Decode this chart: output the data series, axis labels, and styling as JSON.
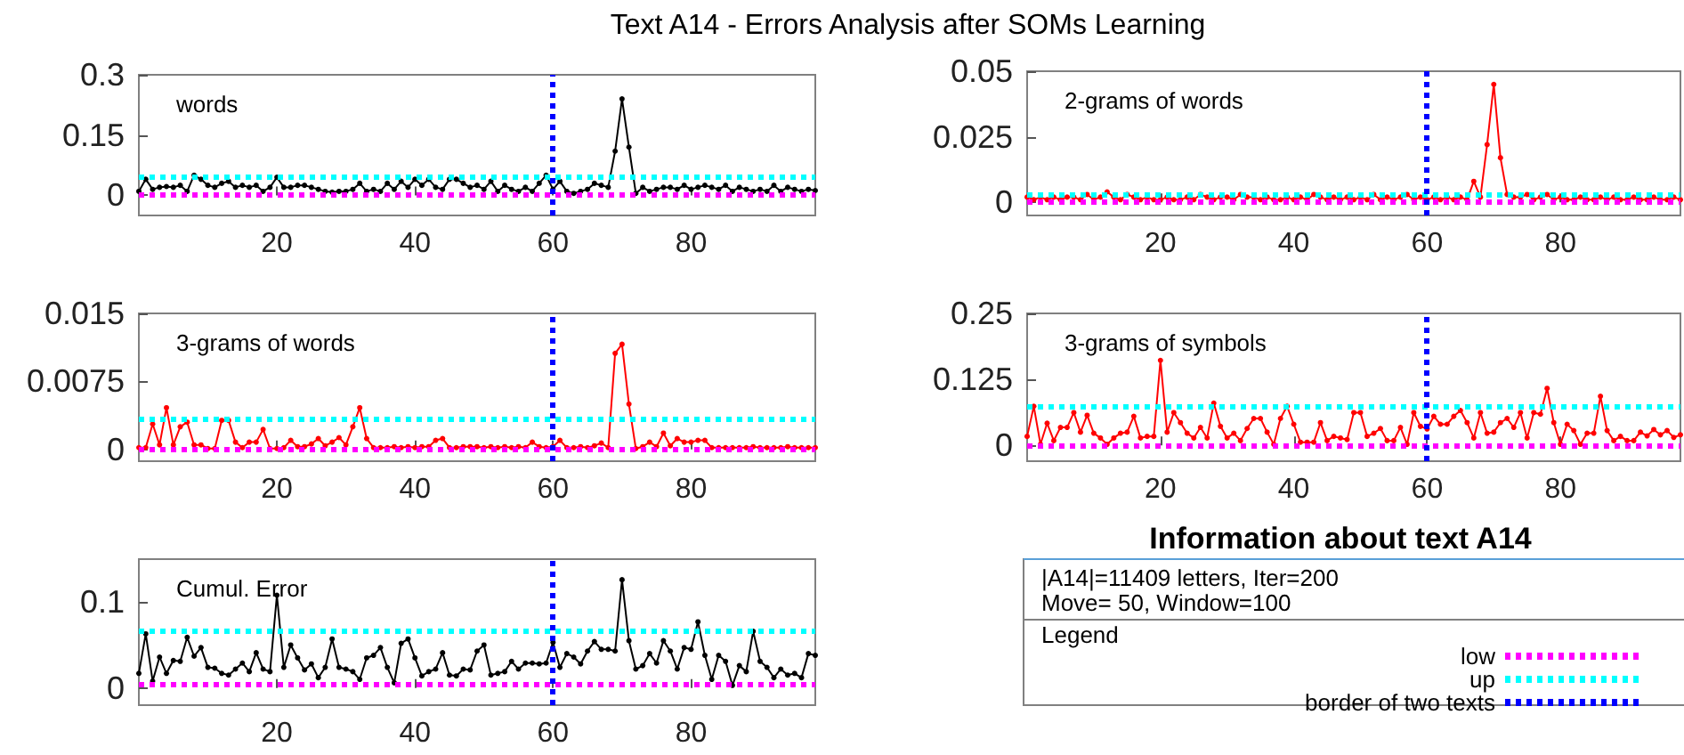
{
  "chart_data": [
    {
      "type": "line",
      "title": "Text A14 - Errors Analysis after SOMs Learning",
      "subtitle": "words",
      "marker": "circle",
      "xlim": [
        0,
        98
      ],
      "xticks": [
        20,
        40,
        60,
        80
      ],
      "ylim": [
        -0.05,
        0.3
      ],
      "yticks": [
        0,
        0.15,
        0.3
      ],
      "x": [
        0,
        1,
        2,
        3,
        4,
        5,
        6,
        7,
        8,
        9,
        10,
        11,
        12,
        13,
        14,
        15,
        16,
        17,
        18,
        19,
        20,
        21,
        22,
        23,
        24,
        25,
        26,
        27,
        28,
        29,
        30,
        31,
        32,
        33,
        34,
        35,
        36,
        37,
        38,
        39,
        40,
        41,
        42,
        43,
        44,
        45,
        46,
        47,
        48,
        49,
        50,
        51,
        52,
        53,
        54,
        55,
        56,
        57,
        58,
        59,
        60,
        61,
        62,
        63,
        64,
        65,
        66,
        67,
        68,
        69,
        70,
        71,
        72,
        73,
        74,
        75,
        76,
        77,
        78,
        79,
        80,
        81,
        82,
        83,
        84,
        85,
        86,
        87,
        88,
        89,
        90,
        91,
        92,
        93,
        94,
        95,
        96,
        97,
        98
      ],
      "series": [
        {
          "color": "#000000",
          "values": [
            0.01,
            0.04,
            0.015,
            0.02,
            0.022,
            0.02,
            0.025,
            0.01,
            0.05,
            0.04,
            0.025,
            0.02,
            0.03,
            0.035,
            0.02,
            0.025,
            0.02,
            0.025,
            0.01,
            0.02,
            0.045,
            0.02,
            0.02,
            0.025,
            0.025,
            0.02,
            0.015,
            0.01,
            0.008,
            0.01,
            0.01,
            0.015,
            0.03,
            0.01,
            0.015,
            0.01,
            0.03,
            0.015,
            0.035,
            0.02,
            0.04,
            0.025,
            0.04,
            0.02,
            0.015,
            0.04,
            0.04,
            0.03,
            0.02,
            0.025,
            0.015,
            0.035,
            0.01,
            0.025,
            0.015,
            0.01,
            0.02,
            0.01,
            0.03,
            0.05,
            0.015,
            0.035,
            0.01,
            0.005,
            0.01,
            0.015,
            0.03,
            0.025,
            0.02,
            0.11,
            0.24,
            0.12,
            0.005,
            0.02,
            0.01,
            0.015,
            0.02,
            0.02,
            0.015,
            0.025,
            0.015,
            0.02,
            0.025,
            0.02,
            0.015,
            0.025,
            0.01,
            0.02,
            0.015,
            0.01,
            0.015,
            0.01,
            0.025,
            0.01,
            0.02,
            0.015,
            0.01,
            0.015,
            0.012
          ]
        }
      ],
      "ref_lines": [
        {
          "axis": "y",
          "value": 0.003,
          "color": "#ff00ff",
          "line_style": "dotted"
        },
        {
          "axis": "y",
          "value": 0.048,
          "color": "#00ffff",
          "line_style": "dotted"
        },
        {
          "axis": "x",
          "value": 60,
          "color": "#0000ff",
          "line_style": "dotted"
        }
      ]
    },
    {
      "type": "line",
      "subtitle": "2-grams of words",
      "marker": "circle",
      "xlim": [
        0,
        98
      ],
      "xticks": [
        20,
        40,
        60,
        80
      ],
      "ylim": [
        -0.005,
        0.05
      ],
      "yticks": [
        0,
        0.025,
        0.05
      ],
      "x": [
        0,
        1,
        2,
        3,
        4,
        5,
        6,
        7,
        8,
        9,
        10,
        11,
        12,
        13,
        14,
        15,
        16,
        17,
        18,
        19,
        20,
        21,
        22,
        23,
        24,
        25,
        26,
        27,
        28,
        29,
        30,
        31,
        32,
        33,
        34,
        35,
        36,
        37,
        38,
        39,
        40,
        41,
        42,
        43,
        44,
        45,
        46,
        47,
        48,
        49,
        50,
        51,
        52,
        53,
        54,
        55,
        56,
        57,
        58,
        59,
        60,
        61,
        62,
        63,
        64,
        65,
        66,
        67,
        68,
        69,
        70,
        71,
        72,
        73,
        74,
        75,
        76,
        77,
        78,
        79,
        80,
        81,
        82,
        83,
        84,
        85,
        86,
        87,
        88,
        89,
        90,
        91,
        92,
        93,
        94,
        95,
        96,
        97,
        98
      ],
      "series": [
        {
          "color": "#ff0000",
          "values": [
            0.002,
            0.001,
            0.002,
            0.001,
            0.002,
            0.001,
            0.002,
            0.002,
            0.001,
            0.003,
            0.001,
            0.002,
            0.004,
            0.002,
            0.001,
            0.003,
            0.002,
            0.001,
            0.002,
            0.001,
            0.001,
            0.002,
            0.001,
            0.001,
            0.002,
            0.001,
            0.003,
            0.002,
            0.001,
            0.002,
            0.002,
            0.001,
            0.003,
            0.002,
            0.002,
            0.001,
            0.002,
            0.001,
            0.001,
            0.002,
            0.001,
            0.002,
            0.001,
            0.003,
            0.002,
            0.001,
            0.002,
            0.001,
            0.002,
            0.001,
            0.002,
            0.001,
            0.003,
            0.001,
            0.002,
            0.001,
            0.002,
            0.003,
            0.001,
            0.002,
            0.001,
            0.002,
            0.001,
            0.002,
            0.001,
            0.002,
            0.001,
            0.008,
            0.002,
            0.022,
            0.045,
            0.017,
            0.003,
            0.002,
            0.002,
            0.003,
            0.001,
            0.002,
            0.003,
            0.001,
            0.002,
            0.001,
            0.001,
            0.002,
            0.001,
            0.001,
            0.002,
            0.001,
            0.002,
            0.001,
            0.001,
            0.002,
            0.001,
            0.001,
            0.002,
            0.001,
            0.001,
            0.002,
            0.001
          ]
        }
      ],
      "ref_lines": [
        {
          "axis": "y",
          "value": 0.0004,
          "color": "#ff00ff",
          "line_style": "dotted"
        },
        {
          "axis": "y",
          "value": 0.0033,
          "color": "#00ffff",
          "line_style": "dotted"
        },
        {
          "axis": "x",
          "value": 60,
          "color": "#0000ff",
          "line_style": "dotted"
        }
      ]
    },
    {
      "type": "line",
      "subtitle": "3-grams of words",
      "marker": "circle",
      "xlim": [
        0,
        98
      ],
      "xticks": [
        20,
        40,
        60,
        80
      ],
      "ylim": [
        -0.0013,
        0.015
      ],
      "yticks": [
        0,
        0.0075,
        0.015
      ],
      "x": [
        0,
        1,
        2,
        3,
        4,
        5,
        6,
        7,
        8,
        9,
        10,
        11,
        12,
        13,
        14,
        15,
        16,
        17,
        18,
        19,
        20,
        21,
        22,
        23,
        24,
        25,
        26,
        27,
        28,
        29,
        30,
        31,
        32,
        33,
        34,
        35,
        36,
        37,
        38,
        39,
        40,
        41,
        42,
        43,
        44,
        45,
        46,
        47,
        48,
        49,
        50,
        51,
        52,
        53,
        54,
        55,
        56,
        57,
        58,
        59,
        60,
        61,
        62,
        63,
        64,
        65,
        66,
        67,
        68,
        69,
        70,
        71,
        72,
        73,
        74,
        75,
        76,
        77,
        78,
        79,
        80,
        81,
        82,
        83,
        84,
        85,
        86,
        87,
        88,
        89,
        90,
        91,
        92,
        93,
        94,
        95,
        96,
        97,
        98
      ],
      "series": [
        {
          "color": "#ff0000",
          "values": [
            0.0002,
            0.0002,
            0.0028,
            0.0005,
            0.0046,
            0.0005,
            0.0025,
            0.003,
            0.0005,
            0.0005,
            0.0001,
            0.0001,
            0.0032,
            0.0032,
            0.0008,
            0.0002,
            0.0008,
            0.0008,
            0.0022,
            0.0001,
            0.0001,
            0.0002,
            0.001,
            0.0003,
            0.0003,
            0.0006,
            0.0012,
            0.0004,
            0.0008,
            0.0013,
            0.0005,
            0.0025,
            0.0046,
            0.0012,
            0.0002,
            0.0002,
            0.0002,
            0.0003,
            0.0002,
            0.0003,
            0.0002,
            0.0003,
            0.0003,
            0.001,
            0.0012,
            0.0002,
            0.0002,
            0.0003,
            0.0003,
            0.0003,
            0.0002,
            0.0003,
            0.0002,
            0.0003,
            0.0002,
            0.0003,
            0.0002,
            0.0008,
            0.0003,
            0.0002,
            0.0003,
            0.001,
            0.0002,
            0.0002,
            0.0003,
            0.0002,
            0.0004,
            0.0007,
            0.0002,
            0.0106,
            0.0116,
            0.005,
            0.0001,
            0.0003,
            0.0008,
            0.0003,
            0.0018,
            0.0004,
            0.0012,
            0.0008,
            0.0008,
            0.001,
            0.001,
            0.0002,
            0.0002,
            0.0002,
            0.0002,
            0.0002,
            0.0002,
            0.0003,
            0.0002,
            0.0002,
            0.0002,
            0.0002,
            0.0003,
            0.0002,
            0.0002,
            0.0002,
            0.0002
          ]
        }
      ],
      "ref_lines": [
        {
          "axis": "y",
          "value": 0,
          "color": "#ff00ff",
          "line_style": "dotted"
        },
        {
          "axis": "y",
          "value": 0.0033,
          "color": "#00ffff",
          "line_style": "dotted"
        },
        {
          "axis": "x",
          "value": 60,
          "color": "#0000ff",
          "line_style": "dotted"
        }
      ]
    },
    {
      "type": "line",
      "subtitle": "3-grams of symbols",
      "marker": "circle",
      "xlim": [
        0,
        98
      ],
      "xticks": [
        20,
        40,
        60,
        80
      ],
      "ylim": [
        -0.03,
        0.25
      ],
      "yticks": [
        0,
        0.125,
        0.25
      ],
      "x": [
        0,
        1,
        2,
        3,
        4,
        5,
        6,
        7,
        8,
        9,
        10,
        11,
        12,
        13,
        14,
        15,
        16,
        17,
        18,
        19,
        20,
        21,
        22,
        23,
        24,
        25,
        26,
        27,
        28,
        29,
        30,
        31,
        32,
        33,
        34,
        35,
        36,
        37,
        38,
        39,
        40,
        41,
        42,
        43,
        44,
        45,
        46,
        47,
        48,
        49,
        50,
        51,
        52,
        53,
        54,
        55,
        56,
        57,
        58,
        59,
        60,
        61,
        62,
        63,
        64,
        65,
        66,
        67,
        68,
        69,
        70,
        71,
        72,
        73,
        74,
        75,
        76,
        77,
        78,
        79,
        80,
        81,
        82,
        83,
        84,
        85,
        86,
        87,
        88,
        89,
        90,
        91,
        92,
        93,
        94,
        95,
        96,
        97,
        98
      ],
      "series": [
        {
          "color": "#ff0000",
          "values": [
            0.017,
            0.074,
            0.002,
            0.042,
            0.009,
            0.034,
            0.034,
            0.062,
            0.025,
            0.057,
            0.023,
            0.014,
            0.002,
            0.014,
            0.023,
            0.025,
            0.055,
            0.014,
            0.017,
            0.017,
            0.161,
            0.025,
            0.062,
            0.043,
            0.023,
            0.014,
            0.034,
            0.014,
            0.08,
            0.036,
            0.014,
            0.023,
            0.009,
            0.032,
            0.051,
            0.051,
            0.025,
            0.002,
            0.051,
            0.074,
            0.04,
            0.006,
            0.006,
            0.006,
            0.043,
            0.009,
            0.017,
            0.014,
            0.011,
            0.062,
            0.062,
            0.017,
            0.023,
            0.032,
            0.009,
            0.009,
            0.034,
            0.002,
            0.062,
            0.036,
            0.031,
            0.055,
            0.04,
            0.04,
            0.055,
            0.066,
            0.043,
            0.014,
            0.062,
            0.023,
            0.025,
            0.043,
            0.051,
            0.034,
            0.062,
            0.014,
            0.062,
            0.059,
            0.108,
            0.043,
            0.002,
            0.04,
            0.028,
            0.002,
            0.023,
            0.023,
            0.093,
            0.028,
            0.009,
            0.017,
            0.009,
            0.009,
            0.025,
            0.018,
            0.03,
            0.02,
            0.028,
            0.015,
            0.02
          ]
        }
      ],
      "ref_lines": [
        {
          "axis": "y",
          "value": 0,
          "color": "#ff00ff",
          "line_style": "dotted"
        },
        {
          "axis": "y",
          "value": 0.075,
          "color": "#00ffff",
          "line_style": "dotted"
        },
        {
          "axis": "x",
          "value": 60,
          "color": "#0000ff",
          "line_style": "dotted"
        }
      ]
    },
    {
      "type": "line",
      "subtitle": "Cumul. Error",
      "marker": "circle",
      "xlim": [
        0,
        98
      ],
      "xticks": [
        20,
        40,
        60,
        80
      ],
      "ylim": [
        -0.02,
        0.15
      ],
      "yticks": [
        0,
        0.1
      ],
      "x": [
        0,
        1,
        2,
        3,
        4,
        5,
        6,
        7,
        8,
        9,
        10,
        11,
        12,
        13,
        14,
        15,
        16,
        17,
        18,
        19,
        20,
        21,
        22,
        23,
        24,
        25,
        26,
        27,
        28,
        29,
        30,
        31,
        32,
        33,
        34,
        35,
        36,
        37,
        38,
        39,
        40,
        41,
        42,
        43,
        44,
        45,
        46,
        47,
        48,
        49,
        50,
        51,
        52,
        53,
        54,
        55,
        56,
        57,
        58,
        59,
        60,
        61,
        62,
        63,
        64,
        65,
        66,
        67,
        68,
        69,
        70,
        71,
        72,
        73,
        74,
        75,
        76,
        77,
        78,
        79,
        80,
        81,
        82,
        83,
        84,
        85,
        86,
        87,
        88,
        89,
        90,
        91,
        92,
        93,
        94,
        95,
        96,
        97,
        98
      ],
      "series": [
        {
          "color": "#000000",
          "values": [
            0.017,
            0.063,
            0.008,
            0.036,
            0.017,
            0.032,
            0.031,
            0.059,
            0.037,
            0.047,
            0.024,
            0.023,
            0.017,
            0.015,
            0.022,
            0.029,
            0.019,
            0.041,
            0.022,
            0.019,
            0.108,
            0.024,
            0.05,
            0.035,
            0.021,
            0.028,
            0.012,
            0.024,
            0.057,
            0.024,
            0.022,
            0.019,
            0.01,
            0.035,
            0.038,
            0.047,
            0.024,
            0.006,
            0.052,
            0.057,
            0.035,
            0.014,
            0.019,
            0.022,
            0.041,
            0.015,
            0.014,
            0.022,
            0.021,
            0.043,
            0.05,
            0.015,
            0.017,
            0.019,
            0.031,
            0.022,
            0.029,
            0.029,
            0.028,
            0.029,
            0.053,
            0.024,
            0.04,
            0.036,
            0.028,
            0.043,
            0.054,
            0.045,
            0.045,
            0.043,
            0.126,
            0.055,
            0.022,
            0.026,
            0.04,
            0.029,
            0.055,
            0.043,
            0.022,
            0.047,
            0.045,
            0.077,
            0.038,
            0.01,
            0.038,
            0.031,
            0.003,
            0.026,
            0.019,
            0.066,
            0.031,
            0.024,
            0.012,
            0.022,
            0.015,
            0.017,
            0.012,
            0.04,
            0.038
          ]
        }
      ],
      "ref_lines": [
        {
          "axis": "y",
          "value": 0.004,
          "color": "#ff00ff",
          "line_style": "dotted"
        },
        {
          "axis": "y",
          "value": 0.066,
          "color": "#00ffff",
          "line_style": "dotted"
        },
        {
          "axis": "x",
          "value": 60,
          "color": "#0000ff",
          "line_style": "dotted"
        }
      ]
    },
    {
      "type": "other",
      "title": "Information about text A14",
      "annotations": [
        "|A14|=11409 letters, Iter=200",
        "Move= 50, Window=100"
      ],
      "legend_title": "Legend",
      "series": [
        {
          "name": "low",
          "color": "#ff00ff"
        },
        {
          "name": "up",
          "color": "#00ffff"
        },
        {
          "name": "border of two texts",
          "color": "#0000ff"
        }
      ]
    }
  ]
}
